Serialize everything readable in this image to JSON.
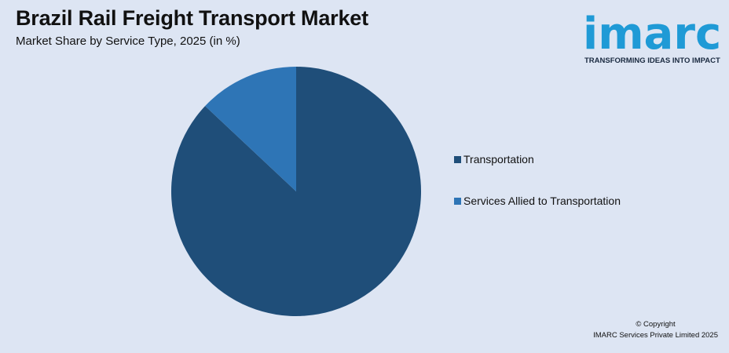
{
  "title": "Brazil Rail Freight Transport Market",
  "subtitle": "Market Share by Service Type, 2025 (in %)",
  "logo": {
    "word": "imarc",
    "tagline": "TRANSFORMING IDEAS INTO IMPACT",
    "color": "#1f9ad6"
  },
  "footer": {
    "line1": "© Copyright",
    "line2": "IMARC Services Private Limited 2025"
  },
  "chart_data": {
    "type": "pie",
    "series": [
      {
        "name": "Transportation",
        "value": 87,
        "color": "#1f4e79"
      },
      {
        "name": "Services Allied to Transportation",
        "value": 13,
        "color": "#2e75b6"
      }
    ],
    "legend_position": "right"
  }
}
